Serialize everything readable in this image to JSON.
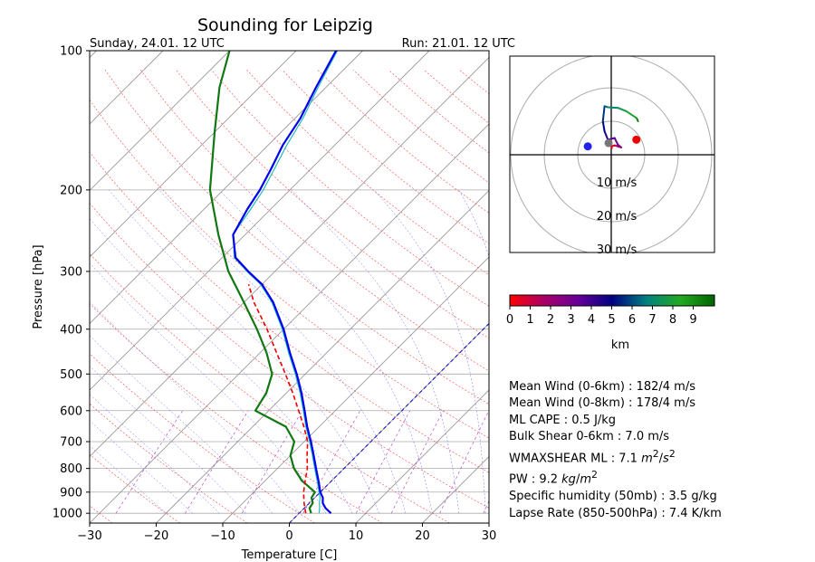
{
  "title": "Sounding for Leipzig",
  "valid_label": "Sunday, 24.01. 12 UTC",
  "run_label": "Run: 21.01. 12 UTC",
  "colors": {
    "temperature": "#0000ee",
    "dewpoint": "#117711",
    "parcel": "#ee0000",
    "virtual_temp": "#22bbbb",
    "isotherm": "#999999",
    "isobar": "#aaaaaa",
    "dry_adiabat": "#ff4444",
    "moist_adiabat": "#6666ff",
    "mixing_ratio": "#aa33cc"
  },
  "chart_data": [
    {
      "type": "line",
      "subtype": "skew-t log-p",
      "title": "Sounding for Leipzig",
      "xlabel": "Temperature [C]",
      "ylabel": "Pressure [hPa]",
      "xlim": [
        -30,
        30
      ],
      "ylim": [
        1050,
        100
      ],
      "y_scale": "log",
      "x_ticks": [
        -30,
        -20,
        -10,
        0,
        10,
        20,
        30
      ],
      "x_tick_labels": [
        "−30",
        "−20",
        "−10",
        "0",
        "10",
        "20",
        "30"
      ],
      "y_ticks": [
        1000,
        900,
        800,
        700,
        600,
        500,
        400,
        300,
        200,
        100
      ],
      "y_tick_labels": [
        "1000",
        "900",
        "800",
        "700",
        "600",
        "500",
        "400",
        "300",
        "200",
        "100"
      ],
      "grid": true,
      "series": [
        {
          "role": "temperature",
          "values": [
            [
              1000,
              4.8
            ],
            [
              975,
              3.2
            ],
            [
              950,
              2.0
            ],
            [
              925,
              1.2
            ],
            [
              900,
              0.0
            ],
            [
              850,
              -2.0
            ],
            [
              800,
              -4.2
            ],
            [
              750,
              -6.5
            ],
            [
              700,
              -9.0
            ],
            [
              650,
              -11.8
            ],
            [
              600,
              -14.6
            ],
            [
              550,
              -17.7
            ],
            [
              500,
              -21.3
            ],
            [
              450,
              -25.5
            ],
            [
              400,
              -30.0
            ],
            [
              350,
              -35.6
            ],
            [
              320,
              -40.0
            ],
            [
              300,
              -44.0
            ],
            [
              280,
              -48.0
            ],
            [
              250,
              -51.8
            ],
            [
              220,
              -53.5
            ],
            [
              200,
              -54.5
            ],
            [
              180,
              -56.0
            ],
            [
              160,
              -57.8
            ],
            [
              140,
              -59.2
            ],
            [
              120,
              -61.5
            ],
            [
              100,
              -64.0
            ]
          ]
        },
        {
          "role": "virtual temperature",
          "values": [
            [
              1000,
              3.0
            ],
            [
              975,
              2.3
            ],
            [
              950,
              1.5
            ],
            [
              925,
              0.8
            ],
            [
              900,
              -0.2
            ],
            [
              850,
              -2.2
            ],
            [
              800,
              -4.4
            ],
            [
              750,
              -6.7
            ],
            [
              700,
              -9.2
            ],
            [
              650,
              -12.0
            ],
            [
              600,
              -14.8
            ],
            [
              550,
              -17.9
            ],
            [
              500,
              -21.5
            ],
            [
              450,
              -25.7
            ],
            [
              400,
              -30.2
            ],
            [
              350,
              -35.8
            ],
            [
              320,
              -40.2
            ],
            [
              300,
              -44.2
            ],
            [
              280,
              -48.2
            ],
            [
              250,
              -51.8
            ],
            [
              220,
              -53.0
            ],
            [
              200,
              -54.0
            ],
            [
              180,
              -55.5
            ],
            [
              160,
              -57.2
            ],
            [
              140,
              -58.8
            ],
            [
              120,
              -61.2
            ],
            [
              100,
              -63.8
            ]
          ]
        },
        {
          "role": "dewpoint",
          "values": [
            [
              1000,
              1.8
            ],
            [
              975,
              0.8
            ],
            [
              950,
              0.5
            ],
            [
              925,
              -0.5
            ],
            [
              900,
              -0.8
            ],
            [
              850,
              -4.5
            ],
            [
              800,
              -7.5
            ],
            [
              750,
              -10.0
            ],
            [
              700,
              -11.5
            ],
            [
              650,
              -15.0
            ],
            [
              600,
              -22.0
            ],
            [
              575,
              -22.5
            ],
            [
              550,
              -23.0
            ],
            [
              500,
              -25.0
            ],
            [
              450,
              -29.0
            ],
            [
              400,
              -34.0
            ],
            [
              350,
              -40.0
            ],
            [
              300,
              -47.0
            ],
            [
              250,
              -54.0
            ],
            [
              200,
              -62.0
            ],
            [
              150,
              -70.0
            ],
            [
              120,
              -76.0
            ],
            [
              100,
              -80.0
            ]
          ]
        },
        {
          "role": "parcel",
          "values": [
            [
              1000,
              1.0
            ],
            [
              950,
              -0.8
            ],
            [
              900,
              -2.5
            ],
            [
              850,
              -4.0
            ],
            [
              800,
              -5.5
            ],
            [
              750,
              -7.5
            ],
            [
              700,
              -9.5
            ],
            [
              650,
              -12.3
            ],
            [
              600,
              -15.5
            ],
            [
              550,
              -19.0
            ],
            [
              500,
              -23.0
            ],
            [
              450,
              -27.5
            ],
            [
              400,
              -32.5
            ],
            [
              350,
              -38.5
            ],
            [
              320,
              -42.0
            ]
          ]
        }
      ]
    },
    {
      "type": "scatter",
      "subtype": "hodograph",
      "range_rings_labels": [
        "10 m/s",
        "20 m/s",
        "30 m/s"
      ],
      "points_u_v_ms": [
        [
          0.2,
          2.0
        ],
        [
          0.0,
          2.5
        ],
        [
          1.0,
          2.8
        ],
        [
          2.0,
          2.5
        ],
        [
          3.0,
          2.2
        ],
        [
          2.0,
          3.0
        ],
        [
          1.0,
          5.0
        ],
        [
          -1.0,
          4.5
        ],
        [
          -2.0,
          7.0
        ],
        [
          -2.5,
          10.0
        ],
        [
          -2.0,
          14.5
        ],
        [
          -1.0,
          14.2
        ],
        [
          2.0,
          14.0
        ],
        [
          4.5,
          13.0
        ],
        [
          7.5,
          11.0
        ],
        [
          7.8,
          10.5
        ],
        [
          8.0,
          10.0
        ]
      ],
      "markers": [
        {
          "label": "storm motion right",
          "u": 7.5,
          "v": 4.5,
          "color": "#ee0000"
        },
        {
          "label": "storm motion left",
          "u": -7.0,
          "v": 2.5,
          "color": "#2222ee"
        },
        {
          "label": "mean wind",
          "u": -0.8,
          "v": 3.5,
          "color": "#777777"
        }
      ]
    }
  ],
  "colorbar": {
    "ticks": [
      "0",
      "1",
      "2",
      "3",
      "4",
      "5",
      "6",
      "7",
      "8",
      "9"
    ],
    "label": "km",
    "stops": [
      "#ff0000",
      "#aa0066",
      "#660099",
      "#000080",
      "#008080",
      "#22aa22",
      "#006400"
    ]
  },
  "stats": [
    {
      "html": "Mean Wind (0-6km) : 182/4 m/s"
    },
    {
      "html": "Mean Wind (0-8km) : 178/4 m/s"
    },
    {
      "html": "ML CAPE : 0.5 J/kg"
    },
    {
      "html": "Bulk Shear 0-6km : 7.0 m/s"
    },
    {
      "html": "WMAXSHEAR ML : 7.1 <i>m</i><sup>2</sup>/<i>s</i><sup>2</sup>"
    },
    {
      "html": "PW : 9.2 <i>kg</i>/<i>m</i><sup>2</sup>"
    },
    {
      "html": "Specific humidity (50mb) : 3.5 g/kg"
    },
    {
      "html": "Lapse Rate (850-500hPa) : 7.4 K/km"
    }
  ]
}
